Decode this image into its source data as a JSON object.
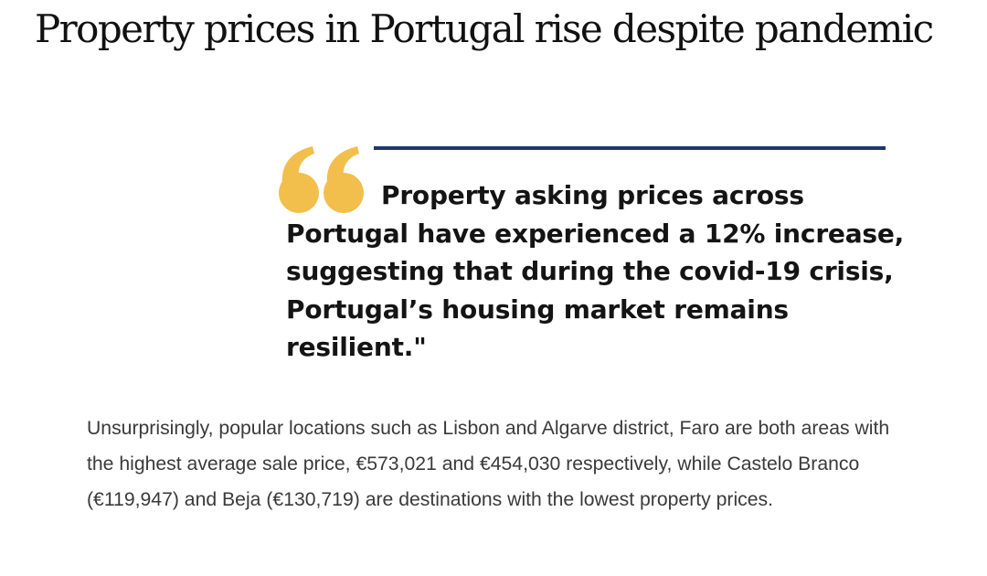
{
  "article": {
    "title": "Property prices in Portugal rise despite pandemic",
    "pull_quote": "Property asking prices across Portugal have experienced a 12% increase, suggesting that during the covid-19 crisis, Portugal’s housing market remains resilient.\"",
    "body": "Unsurprisingly, popular locations such as Lisbon and Algarve district, Faro are both areas with the highest average sale price, €573,021 and €454,030 respectively, while Castelo Branco (€119,947) and Beja (€130,719) are destinations with the lowest property prices."
  },
  "colors": {
    "quote_rule": "#1e3866",
    "quote_mark": "#f2bf4c",
    "title_text": "#111111",
    "quote_text": "#141414",
    "body_text": "#3a3a3a",
    "background": "#ffffff"
  },
  "icons": {
    "quote_mark": "left-double-quote-icon"
  }
}
